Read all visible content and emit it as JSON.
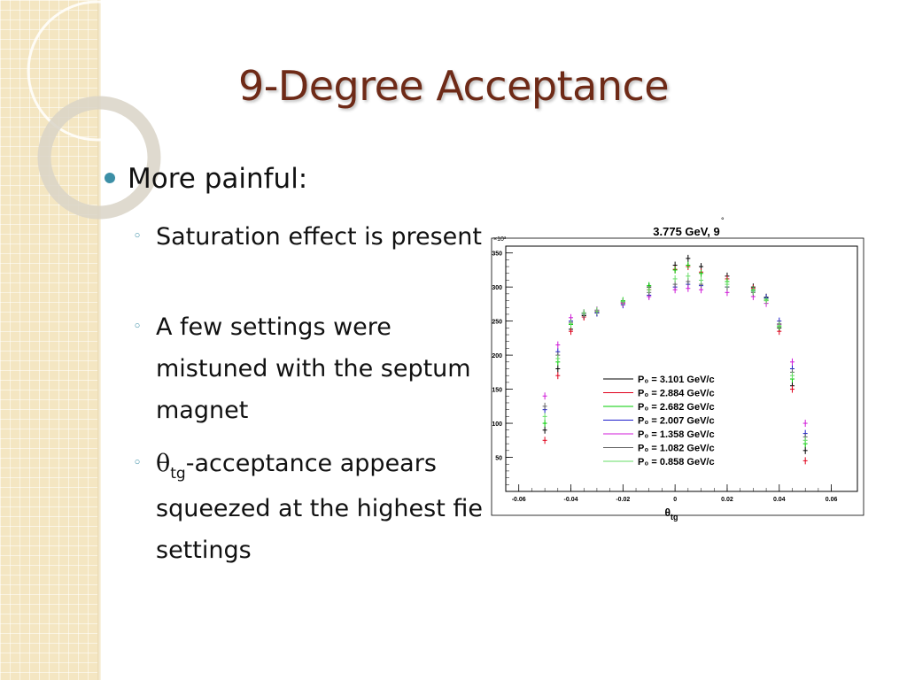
{
  "slide": {
    "title": "9-Degree Acceptance",
    "bullet": "More painful:",
    "sub_bullets": [
      "Saturation effect is present",
      "A few settings were mistuned with the septum magnet",
      "-acceptance appears squeezed at the highest field settings"
    ],
    "theta_symbol": "θ",
    "theta_sub": "tg",
    "accent_color": "#3c8fa6",
    "title_color": "#6e2a17"
  },
  "chart_data": {
    "type": "scatter",
    "title": "3.775 GeV, 9",
    "title_superscript": "°",
    "xlabel": "θ",
    "xlabel_sub": "tg",
    "y_multiplier": "×10³",
    "xlim": [
      -0.065,
      0.07
    ],
    "ylim": [
      0,
      360
    ],
    "x_ticks": [
      "-0.06",
      "-0.04",
      "-0.02",
      "0",
      "0.02",
      "0.04",
      "0.06"
    ],
    "y_ticks": [
      "50",
      "100",
      "150",
      "200",
      "250",
      "300",
      "350"
    ],
    "legend_position": "bottom-center",
    "series": [
      {
        "name": "P₀ = 3.101 GeV/c",
        "color": "#000000",
        "points": [
          [
            -0.05,
            90
          ],
          [
            -0.045,
            180
          ],
          [
            -0.04,
            238
          ],
          [
            -0.035,
            258
          ],
          [
            -0.03,
            262
          ],
          [
            -0.02,
            278
          ],
          [
            -0.01,
            300
          ],
          [
            0,
            332
          ],
          [
            0.005,
            342
          ],
          [
            0.01,
            330
          ],
          [
            0.02,
            316
          ],
          [
            0.03,
            300
          ],
          [
            0.035,
            285
          ],
          [
            0.04,
            240
          ],
          [
            0.045,
            155
          ],
          [
            0.05,
            60
          ]
        ]
      },
      {
        "name": "P₀ = 2.884 GeV/c",
        "color": "#e0001b",
        "points": [
          [
            -0.05,
            75
          ],
          [
            -0.045,
            170
          ],
          [
            -0.04,
            235
          ],
          [
            -0.035,
            256
          ],
          [
            -0.03,
            264
          ],
          [
            -0.02,
            276
          ],
          [
            -0.01,
            296
          ],
          [
            0,
            326
          ],
          [
            0.005,
            330
          ],
          [
            0.01,
            322
          ],
          [
            0.02,
            312
          ],
          [
            0.03,
            298
          ],
          [
            0.035,
            280
          ],
          [
            0.04,
            235
          ],
          [
            0.045,
            150
          ],
          [
            0.05,
            45
          ]
        ]
      },
      {
        "name": "P₀ = 2.682 GeV/c",
        "color": "#00cc00",
        "points": [
          [
            -0.05,
            100
          ],
          [
            -0.045,
            190
          ],
          [
            -0.04,
            245
          ],
          [
            -0.035,
            262
          ],
          [
            -0.03,
            266
          ],
          [
            -0.02,
            280
          ],
          [
            -0.01,
            302
          ],
          [
            0,
            325
          ],
          [
            0.005,
            332
          ],
          [
            0.01,
            320
          ],
          [
            0.02,
            308
          ],
          [
            0.03,
            296
          ],
          [
            0.035,
            282
          ],
          [
            0.04,
            242
          ],
          [
            0.045,
            165
          ],
          [
            0.05,
            70
          ]
        ]
      },
      {
        "name": "P₀ = 2.007 GeV/c",
        "color": "#1c1ccc",
        "points": [
          [
            -0.05,
            120
          ],
          [
            -0.045,
            205
          ],
          [
            -0.04,
            250
          ],
          [
            -0.035,
            260
          ],
          [
            -0.03,
            262
          ],
          [
            -0.02,
            274
          ],
          [
            -0.01,
            288
          ],
          [
            0,
            300
          ],
          [
            0.005,
            304
          ],
          [
            0.01,
            302
          ],
          [
            0.02,
            300
          ],
          [
            0.03,
            294
          ],
          [
            0.035,
            284
          ],
          [
            0.04,
            250
          ],
          [
            0.045,
            180
          ],
          [
            0.05,
            85
          ]
        ]
      },
      {
        "name": "P₀ = 1.358 GeV/c",
        "color": "#d01ad8",
        "points": [
          [
            -0.05,
            140
          ],
          [
            -0.045,
            215
          ],
          [
            -0.04,
            255
          ],
          [
            -0.035,
            262
          ],
          [
            -0.03,
            266
          ],
          [
            -0.02,
            276
          ],
          [
            -0.01,
            286
          ],
          [
            0,
            296
          ],
          [
            0.005,
            298
          ],
          [
            0.01,
            296
          ],
          [
            0.02,
            292
          ],
          [
            0.03,
            286
          ],
          [
            0.035,
            276
          ],
          [
            0.04,
            245
          ],
          [
            0.045,
            190
          ],
          [
            0.05,
            100
          ]
        ]
      },
      {
        "name": "P₀ = 1.082 GeV/c",
        "color": "#666666",
        "points": [
          [
            -0.05,
            125
          ],
          [
            -0.045,
            200
          ],
          [
            -0.04,
            248
          ],
          [
            -0.035,
            260
          ],
          [
            -0.03,
            264
          ],
          [
            -0.02,
            278
          ],
          [
            -0.01,
            292
          ],
          [
            0,
            304
          ],
          [
            0.005,
            308
          ],
          [
            0.01,
            304
          ],
          [
            0.02,
            300
          ],
          [
            0.03,
            292
          ],
          [
            0.035,
            280
          ],
          [
            0.04,
            246
          ],
          [
            0.045,
            175
          ],
          [
            0.05,
            80
          ]
        ]
      },
      {
        "name": "P₀ = 0.858 GeV/c",
        "color": "#66dd66",
        "points": [
          [
            -0.05,
            110
          ],
          [
            -0.045,
            195
          ],
          [
            -0.04,
            246
          ],
          [
            -0.035,
            262
          ],
          [
            -0.03,
            265
          ],
          [
            -0.02,
            279
          ],
          [
            -0.01,
            296
          ],
          [
            0,
            312
          ],
          [
            0.005,
            316
          ],
          [
            0.01,
            310
          ],
          [
            0.02,
            304
          ],
          [
            0.03,
            294
          ],
          [
            0.035,
            280
          ],
          [
            0.04,
            244
          ],
          [
            0.045,
            170
          ],
          [
            0.05,
            75
          ]
        ]
      }
    ]
  }
}
